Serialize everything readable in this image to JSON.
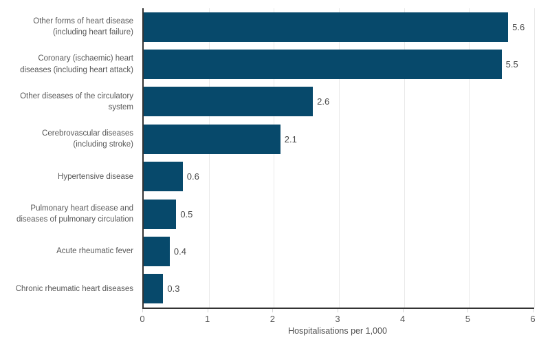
{
  "chart_data": {
    "type": "bar",
    "orientation": "horizontal",
    "title": "",
    "xlabel": "Hospitalisations per 1,000",
    "ylabel": "",
    "categories": [
      "Other forms of heart disease (including heart failure)",
      "Coronary (ischaemic) heart diseases (including heart attack)",
      "Other diseases of the circulatory system",
      "Cerebrovascular diseases (including stroke)",
      "Hypertensive disease",
      "Pulmonary heart disease and diseases of pulmonary circulation",
      "Acute rheumatic fever",
      "Chronic rheumatic heart diseases"
    ],
    "category_lines": [
      [
        "Other forms of heart disease",
        "(including heart failure)"
      ],
      [
        "Coronary (ischaemic) heart",
        "diseases (including heart attack)"
      ],
      [
        "Other diseases of the circulatory",
        "system"
      ],
      [
        "Cerebrovascular diseases",
        "(including stroke)"
      ],
      [
        "Hypertensive disease"
      ],
      [
        "Pulmonary heart disease and",
        "diseases of pulmonary circulation"
      ],
      [
        "Acute rheumatic fever"
      ],
      [
        "Chronic rheumatic heart diseases"
      ]
    ],
    "values": [
      5.6,
      5.5,
      2.6,
      2.1,
      0.6,
      0.5,
      0.4,
      0.3
    ],
    "value_labels": [
      "5.6",
      "5.5",
      "2.6",
      "2.1",
      "0.6",
      "0.5",
      "0.4",
      "0.3"
    ],
    "xlim": [
      0,
      6
    ],
    "x_ticks": [
      "0",
      "1",
      "2",
      "3",
      "4",
      "5",
      "6"
    ],
    "grid": "vertical-light",
    "legend": "none"
  },
  "colors": {
    "bar": "#07496B",
    "gridline": "#e9e9e9",
    "axis_line": "#333333",
    "tick_mark": "#d6d6d6",
    "category_label": "#585858",
    "value_label": "#4a4a4a",
    "tick_label": "#565656",
    "axis_title": "#4e4e4e",
    "background": "#ffffff"
  }
}
